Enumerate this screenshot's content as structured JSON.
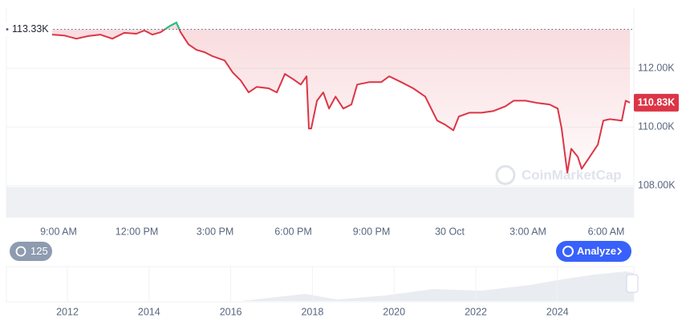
{
  "chart_data": {
    "type": "line",
    "x": [
      8.75,
      9.22,
      9.68,
      10.14,
      10.6,
      11.06,
      11.52,
      11.98,
      12.29,
      12.6,
      12.91,
      13.28,
      13.52,
      13.68,
      13.98,
      14.29,
      14.6,
      14.91,
      15.37,
      15.68,
      15.98,
      16.29,
      16.6,
      17.06,
      17.37,
      17.68,
      17.98,
      18.29,
      18.51,
      18.6,
      18.69,
      18.91,
      19.15,
      19.37,
      19.62,
      19.92,
      20.23,
      20.45,
      20.91,
      21.37,
      21.68,
      22.14,
      22.6,
      23.06,
      23.52,
      23.83,
      24.14,
      24.35,
      24.75,
      25.22,
      25.68,
      26.14,
      26.45,
      26.91,
      27.37,
      27.83,
      28.14,
      28.29,
      28.51,
      28.66,
      28.91,
      29.06,
      29.37,
      29.68,
      29.89,
      30.14,
      30.6,
      30.75,
      30.91
    ],
    "values": [
      113.15,
      113.12,
      113.01,
      113.1,
      113.15,
      113.01,
      113.21,
      113.18,
      113.29,
      113.15,
      113.23,
      113.45,
      113.56,
      113.23,
      112.82,
      112.63,
      112.55,
      112.41,
      112.27,
      111.86,
      111.59,
      111.18,
      111.37,
      111.32,
      111.18,
      111.81,
      111.64,
      111.45,
      111.73,
      109.95,
      109.95,
      110.9,
      111.18,
      110.63,
      111.04,
      110.63,
      110.77,
      111.45,
      111.53,
      111.53,
      111.73,
      111.53,
      111.32,
      111.04,
      110.22,
      110.08,
      109.89,
      110.36,
      110.49,
      110.49,
      110.55,
      110.71,
      110.9,
      110.9,
      110.82,
      110.77,
      110.63,
      109.95,
      108.44,
      109.26,
      108.99,
      108.58,
      108.99,
      109.4,
      110.22,
      110.27,
      110.22,
      110.9,
      110.83
    ],
    "color": "#dc3545",
    "up_color": "#16c784",
    "xlim": [
      7,
      31.06
    ],
    "xticks": [
      {
        "value": 9,
        "label": "9:00 AM"
      },
      {
        "value": 12,
        "label": "12:00 PM"
      },
      {
        "value": 15,
        "label": "3:00 PM"
      },
      {
        "value": 18,
        "label": "6:00 PM"
      },
      {
        "value": 21,
        "label": "9:00 PM"
      },
      {
        "value": 24,
        "label": "30 Oct"
      },
      {
        "value": 27,
        "label": "3:00 AM"
      },
      {
        "value": 30,
        "label": "6:00 AM"
      }
    ],
    "ylim": [
      107,
      114
    ],
    "yticks": [
      {
        "value": 108,
        "label": "108.00K"
      },
      {
        "value": 110,
        "label": "110.00K"
      },
      {
        "value": 112,
        "label": "112.00K"
      }
    ],
    "grid": true,
    "reference": {
      "value": 113.33,
      "label": "113.33K"
    },
    "current": {
      "value": 110.83,
      "label": "110.83K"
    },
    "watermark": "CoinMarketCap",
    "history_badge": "125",
    "analyze_button": "Analyze",
    "navigator_years": [
      "2012",
      "2014",
      "2016",
      "2018",
      "2020",
      "2022",
      "2024"
    ]
  }
}
